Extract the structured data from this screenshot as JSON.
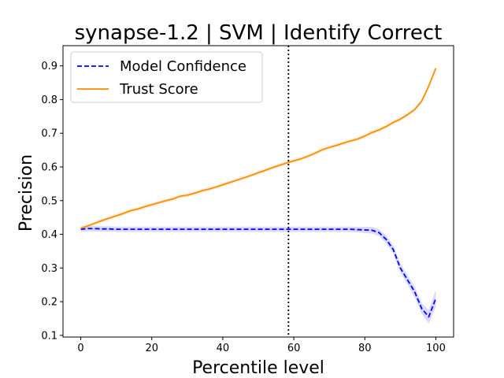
{
  "chart_data": {
    "type": "line",
    "title": "synapse-1.2 | SVM | Identify Correct",
    "xlabel": "Percentile level",
    "ylabel": "Precision",
    "xlim": [
      -5,
      105
    ],
    "ylim": [
      0.095,
      0.96
    ],
    "x_ticks": [
      0,
      20,
      40,
      60,
      80,
      100
    ],
    "y_ticks": [
      0.1,
      0.2,
      0.3,
      0.4,
      0.5,
      0.6,
      0.7,
      0.8,
      0.9
    ],
    "vline": 58.5,
    "legend_position": "upper-left",
    "grid": false,
    "series": [
      {
        "name": "Model Confidence",
        "color": "#0000ff",
        "linestyle": "dashed",
        "x": [
          0,
          2,
          4,
          6,
          8,
          10,
          12,
          14,
          16,
          18,
          20,
          22,
          24,
          26,
          28,
          30,
          32,
          34,
          36,
          38,
          40,
          42,
          44,
          46,
          48,
          50,
          52,
          54,
          56,
          58,
          60,
          62,
          64,
          66,
          68,
          70,
          72,
          74,
          76,
          78,
          80,
          82,
          84,
          86,
          88,
          90,
          92,
          94,
          96,
          98,
          100
        ],
        "values": [
          0.415,
          0.417,
          0.417,
          0.416,
          0.416,
          0.415,
          0.415,
          0.415,
          0.415,
          0.415,
          0.415,
          0.415,
          0.415,
          0.415,
          0.415,
          0.415,
          0.415,
          0.415,
          0.415,
          0.415,
          0.415,
          0.415,
          0.415,
          0.415,
          0.415,
          0.415,
          0.415,
          0.415,
          0.415,
          0.415,
          0.415,
          0.415,
          0.415,
          0.415,
          0.415,
          0.415,
          0.415,
          0.415,
          0.415,
          0.414,
          0.413,
          0.412,
          0.405,
          0.385,
          0.355,
          0.3,
          0.265,
          0.23,
          0.18,
          0.155,
          0.21
        ],
        "band": [
          0.008,
          0.008,
          0.008,
          0.008,
          0.008,
          0.008,
          0.008,
          0.008,
          0.008,
          0.008,
          0.008,
          0.008,
          0.008,
          0.008,
          0.008,
          0.008,
          0.008,
          0.008,
          0.008,
          0.008,
          0.008,
          0.008,
          0.008,
          0.008,
          0.008,
          0.008,
          0.008,
          0.008,
          0.008,
          0.008,
          0.008,
          0.008,
          0.008,
          0.008,
          0.008,
          0.008,
          0.008,
          0.008,
          0.008,
          0.008,
          0.009,
          0.01,
          0.01,
          0.012,
          0.012,
          0.014,
          0.014,
          0.016,
          0.016,
          0.02,
          0.025
        ]
      },
      {
        "name": "Trust Score",
        "color": "#ff8c00",
        "linestyle": "solid",
        "x": [
          0,
          2,
          4,
          6,
          8,
          10,
          12,
          14,
          16,
          18,
          20,
          22,
          24,
          26,
          28,
          30,
          32,
          34,
          36,
          38,
          40,
          42,
          44,
          46,
          48,
          50,
          52,
          54,
          56,
          58,
          60,
          62,
          64,
          66,
          68,
          70,
          72,
          74,
          76,
          78,
          80,
          82,
          84,
          86,
          88,
          90,
          92,
          94,
          96,
          98,
          100
        ],
        "values": [
          0.418,
          0.425,
          0.433,
          0.441,
          0.448,
          0.455,
          0.462,
          0.47,
          0.475,
          0.482,
          0.488,
          0.494,
          0.5,
          0.505,
          0.513,
          0.516,
          0.522,
          0.529,
          0.534,
          0.54,
          0.547,
          0.554,
          0.561,
          0.568,
          0.575,
          0.583,
          0.59,
          0.598,
          0.605,
          0.612,
          0.618,
          0.624,
          0.632,
          0.641,
          0.651,
          0.658,
          0.664,
          0.671,
          0.677,
          0.683,
          0.692,
          0.702,
          0.71,
          0.72,
          0.732,
          0.742,
          0.755,
          0.77,
          0.795,
          0.84,
          0.893
        ]
      }
    ]
  }
}
